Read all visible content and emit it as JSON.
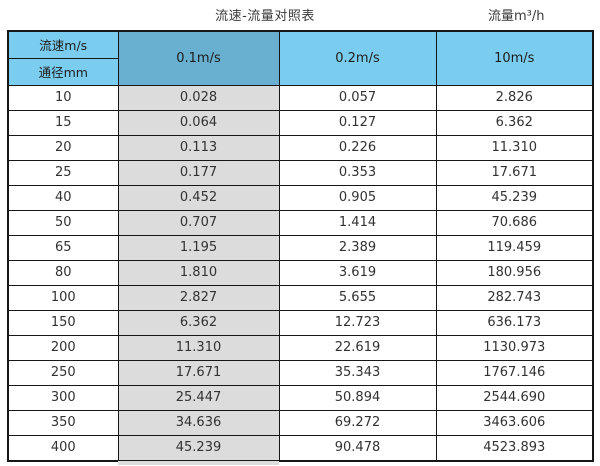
{
  "titles": {
    "main": "流速-流量对照表",
    "unit": "流量m³/h"
  },
  "colors": {
    "light_blue": "#7BCDEF",
    "dark_blue": "#68AFD0",
    "col_gray": "#DCDCDC",
    "border_dark": "#161616"
  },
  "chart_data": {
    "type": "table",
    "title": "流速-流量对照表",
    "unit_label": "流量m³/h",
    "corner_top": "流速m/s",
    "corner_bottom": "通径mm",
    "columns": [
      "0.1m/s",
      "0.2m/s",
      "10m/s"
    ],
    "rows": [
      {
        "dn": "10",
        "values": [
          "0.028",
          "0.057",
          "2.826"
        ]
      },
      {
        "dn": "15",
        "values": [
          "0.064",
          "0.127",
          "6.362"
        ]
      },
      {
        "dn": "20",
        "values": [
          "0.113",
          "0.226",
          "11.310"
        ]
      },
      {
        "dn": "25",
        "values": [
          "0.177",
          "0.353",
          "17.671"
        ]
      },
      {
        "dn": "40",
        "values": [
          "0.452",
          "0.905",
          "45.239"
        ]
      },
      {
        "dn": "50",
        "values": [
          "0.707",
          "1.414",
          "70.686"
        ]
      },
      {
        "dn": "65",
        "values": [
          "1.195",
          "2.389",
          "119.459"
        ]
      },
      {
        "dn": "80",
        "values": [
          "1.810",
          "3.619",
          "180.956"
        ]
      },
      {
        "dn": "100",
        "values": [
          "2.827",
          "5.655",
          "282.743"
        ]
      },
      {
        "dn": "150",
        "values": [
          "6.362",
          "12.723",
          "636.173"
        ]
      },
      {
        "dn": "200",
        "values": [
          "11.310",
          "22.619",
          "1130.973"
        ]
      },
      {
        "dn": "250",
        "values": [
          "17.671",
          "35.343",
          "1767.146"
        ]
      },
      {
        "dn": "300",
        "values": [
          "25.447",
          "50.894",
          "2544.690"
        ]
      },
      {
        "dn": "350",
        "values": [
          "34.636",
          "69.272",
          "3463.606"
        ]
      },
      {
        "dn": "400",
        "values": [
          "45.239",
          "90.478",
          "4523.893"
        ]
      }
    ]
  }
}
